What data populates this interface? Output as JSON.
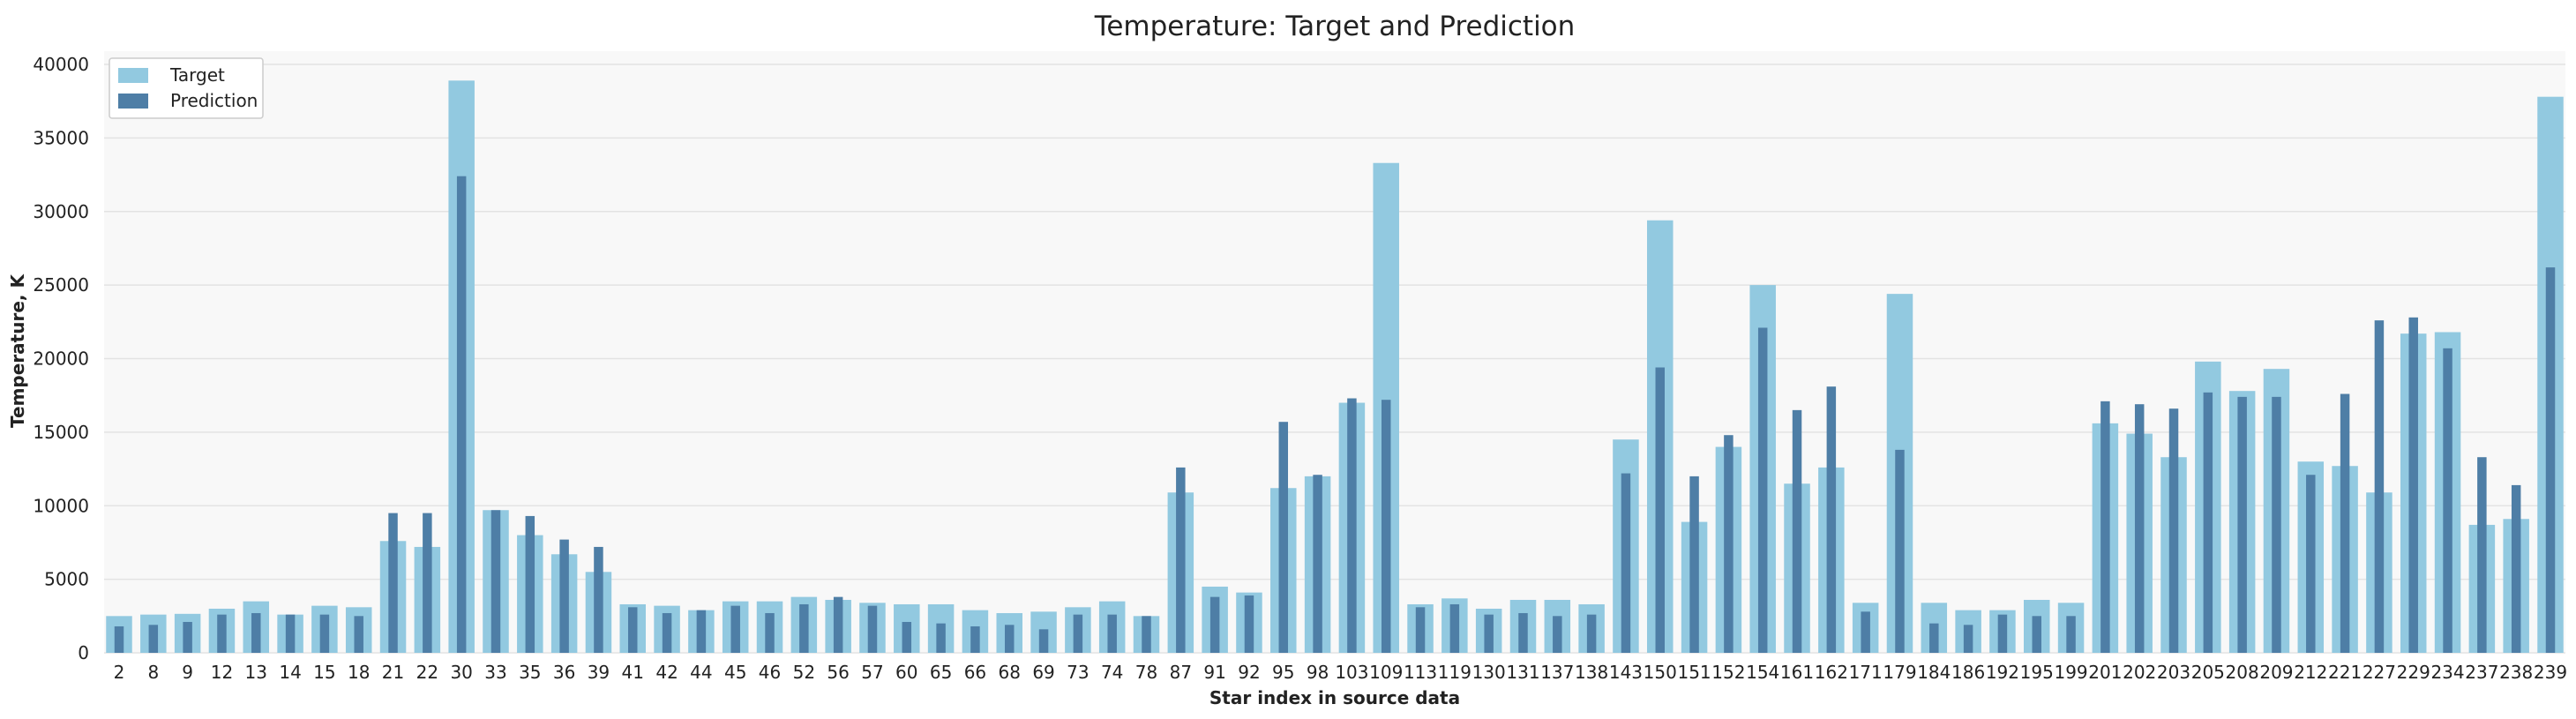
{
  "chart_data": {
    "type": "bar",
    "title": "Temperature: Target and Prediction",
    "xlabel": "Star index in source data",
    "ylabel": "Temperature, K",
    "ylim": [
      0,
      40000
    ],
    "yticks": [
      0,
      5000,
      10000,
      15000,
      20000,
      25000,
      30000,
      35000,
      40000
    ],
    "grid": "horizontal",
    "legend_position": "top-left",
    "categories": [
      "2",
      "8",
      "9",
      "12",
      "13",
      "14",
      "15",
      "18",
      "21",
      "22",
      "30",
      "33",
      "35",
      "36",
      "39",
      "41",
      "42",
      "44",
      "45",
      "46",
      "52",
      "56",
      "57",
      "60",
      "65",
      "66",
      "68",
      "69",
      "73",
      "74",
      "78",
      "87",
      "91",
      "92",
      "95",
      "98",
      "103",
      "109",
      "113",
      "119",
      "130",
      "131",
      "137",
      "138",
      "143",
      "150",
      "151",
      "152",
      "154",
      "161",
      "162",
      "171",
      "179",
      "184",
      "186",
      "192",
      "195",
      "199",
      "201",
      "202",
      "203",
      "205",
      "208",
      "209",
      "212",
      "221",
      "227",
      "229",
      "234",
      "237",
      "238",
      "239"
    ],
    "series": [
      {
        "name": "Target",
        "color": "#92c9e0",
        "values": [
          2500,
          2600,
          2650,
          3000,
          3500,
          2600,
          3200,
          3100,
          7600,
          7200,
          38900,
          9700,
          8000,
          6700,
          5500,
          3300,
          3200,
          2900,
          3500,
          3500,
          3800,
          3600,
          3400,
          3300,
          3300,
          2900,
          2700,
          2800,
          3100,
          3500,
          2500,
          10900,
          4500,
          4100,
          11200,
          12000,
          17000,
          33300,
          3300,
          3700,
          3000,
          3600,
          3600,
          3300,
          14500,
          29400,
          8900,
          14000,
          25000,
          11500,
          12600,
          3400,
          24400,
          3400,
          2900,
          2900,
          3600,
          3400,
          15600,
          14900,
          13300,
          19800,
          17800,
          19300,
          13000,
          12700,
          10900,
          21700,
          21800,
          8700,
          9100,
          37800
        ]
      },
      {
        "name": "Prediction",
        "color": "#4e7ea6",
        "values": [
          1800,
          1900,
          2100,
          2600,
          2700,
          2600,
          2600,
          2500,
          9500,
          9500,
          32400,
          9700,
          9300,
          7700,
          7200,
          3100,
          2700,
          2900,
          3200,
          2700,
          3300,
          3800,
          3200,
          2100,
          2000,
          1800,
          1900,
          1600,
          2600,
          2600,
          2500,
          12600,
          3800,
          3900,
          15700,
          12100,
          17300,
          17200,
          3100,
          3300,
          2600,
          2700,
          2500,
          2600,
          12200,
          19400,
          12000,
          14800,
          22100,
          16500,
          18100,
          2800,
          13800,
          2000,
          1900,
          2600,
          2500,
          2500,
          17100,
          16900,
          16600,
          17700,
          17400,
          17400,
          12100,
          17600,
          22600,
          22800,
          20700,
          13300,
          11400,
          26200
        ]
      }
    ]
  }
}
